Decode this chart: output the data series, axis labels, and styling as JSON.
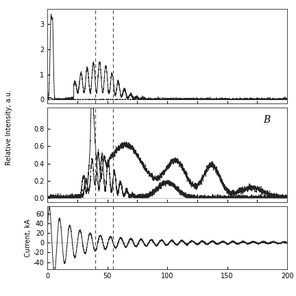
{
  "title": "",
  "xlabel": "",
  "xmax": 200,
  "xmin": 0,
  "vline1": 40,
  "vline2": 55,
  "panel_A_ylabel": "Relative Intensity, a.u.",
  "panel_B_ylabel": "Relative Intensity, a.u.",
  "panel_C_ylabel": "Current, kA",
  "panel_A_yticks": [
    0,
    1,
    2,
    3
  ],
  "panel_B_yticks": [
    0,
    0.2,
    0.4,
    0.6,
    0.8
  ],
  "panel_C_yticks": [
    -40,
    -20,
    0,
    20,
    40,
    60
  ],
  "panel_A_ylim": [
    -0.15,
    3.6
  ],
  "panel_B_ylim": [
    -0.05,
    1.05
  ],
  "panel_C_ylim": [
    -55,
    75
  ],
  "line_color": "#222222",
  "label_B": "B"
}
